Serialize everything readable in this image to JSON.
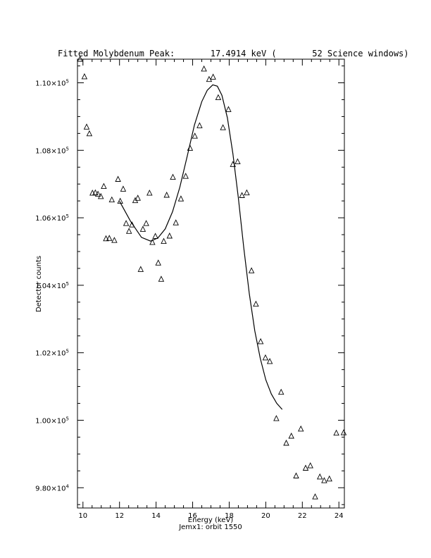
{
  "chart_data": {
    "type": "scatter",
    "title": "Fitted Molybdenum Peak:       17.4914 keV (       52 Science windows)",
    "xlabel": "Energy (keV)",
    "subtitle": "Jemx1: orbit 1550",
    "ylabel": "Detector counts",
    "xlim": [
      9.7,
      24.3
    ],
    "ylim": [
      97400,
      110700
    ],
    "grid": false,
    "x_ticks": [
      {
        "value": 10,
        "label": "10"
      },
      {
        "value": 12,
        "label": "12"
      },
      {
        "value": 14,
        "label": "14"
      },
      {
        "value": 16,
        "label": "16"
      },
      {
        "value": 18,
        "label": "18"
      },
      {
        "value": 20,
        "label": "20"
      },
      {
        "value": 22,
        "label": "22"
      },
      {
        "value": 24,
        "label": "24"
      }
    ],
    "y_ticks": [
      {
        "value": 98000,
        "mantissa": "9.80×10",
        "exp": "4"
      },
      {
        "value": 100000,
        "mantissa": "1.00×10",
        "exp": "5"
      },
      {
        "value": 102000,
        "mantissa": "1.02×10",
        "exp": "5"
      },
      {
        "value": 104000,
        "mantissa": "1.04×10",
        "exp": "5"
      },
      {
        "value": 106000,
        "mantissa": "1.06×10",
        "exp": "5"
      },
      {
        "value": 108000,
        "mantissa": "1.08×10",
        "exp": "5"
      },
      {
        "value": 110000,
        "mantissa": "1.10×10",
        "exp": "5"
      }
    ],
    "series": [
      {
        "marker": "triangle",
        "points": [
          [
            9.84,
            110700
          ],
          [
            10.08,
            110180
          ],
          [
            10.2,
            108690
          ],
          [
            10.35,
            108490
          ],
          [
            10.52,
            106730
          ],
          [
            10.68,
            106740
          ],
          [
            10.82,
            106700
          ],
          [
            10.98,
            106630
          ],
          [
            11.14,
            106930
          ],
          [
            11.26,
            105380
          ],
          [
            11.44,
            105390
          ],
          [
            11.58,
            106530
          ],
          [
            11.72,
            105330
          ],
          [
            11.92,
            107140
          ],
          [
            12.04,
            106490
          ],
          [
            12.2,
            106850
          ],
          [
            12.36,
            105830
          ],
          [
            12.52,
            105600
          ],
          [
            12.68,
            105790
          ],
          [
            12.86,
            106510
          ],
          [
            13.0,
            106580
          ],
          [
            13.16,
            104470
          ],
          [
            13.28,
            105660
          ],
          [
            13.46,
            105830
          ],
          [
            13.64,
            106730
          ],
          [
            13.8,
            105270
          ],
          [
            13.96,
            105450
          ],
          [
            14.12,
            104660
          ],
          [
            14.28,
            104180
          ],
          [
            14.42,
            105300
          ],
          [
            14.58,
            106670
          ],
          [
            14.74,
            105460
          ],
          [
            14.92,
            107200
          ],
          [
            15.08,
            105850
          ],
          [
            15.36,
            106560
          ],
          [
            15.62,
            107230
          ],
          [
            15.86,
            108060
          ],
          [
            16.12,
            108420
          ],
          [
            16.38,
            108730
          ],
          [
            16.62,
            110410
          ],
          [
            16.9,
            110100
          ],
          [
            17.12,
            110170
          ],
          [
            17.4,
            109560
          ],
          [
            17.66,
            108670
          ],
          [
            17.96,
            109210
          ],
          [
            18.2,
            107580
          ],
          [
            18.46,
            107660
          ],
          [
            18.7,
            106660
          ],
          [
            18.96,
            106740
          ],
          [
            19.22,
            104430
          ],
          [
            19.46,
            103440
          ],
          [
            19.72,
            102330
          ],
          [
            19.98,
            101850
          ],
          [
            20.22,
            101740
          ],
          [
            20.58,
            100050
          ],
          [
            20.84,
            100830
          ],
          [
            21.12,
            99320
          ],
          [
            21.4,
            99530
          ],
          [
            21.66,
            98350
          ],
          [
            21.92,
            99740
          ],
          [
            22.18,
            98580
          ],
          [
            22.44,
            98650
          ],
          [
            22.7,
            97730
          ],
          [
            22.96,
            98320
          ],
          [
            23.2,
            98210
          ],
          [
            23.48,
            98260
          ],
          [
            23.86,
            99620
          ],
          [
            24.26,
            99630
          ]
        ]
      },
      {
        "marker": "none",
        "line": "solid",
        "points": [
          [
            12.0,
            106490
          ],
          [
            12.6,
            105900
          ],
          [
            13.2,
            105420
          ],
          [
            13.7,
            105310
          ],
          [
            14.1,
            105400
          ],
          [
            14.5,
            105670
          ],
          [
            14.9,
            106180
          ],
          [
            15.3,
            106910
          ],
          [
            15.7,
            107820
          ],
          [
            16.1,
            108750
          ],
          [
            16.5,
            109440
          ],
          [
            16.8,
            109780
          ],
          [
            17.1,
            109940
          ],
          [
            17.35,
            109900
          ],
          [
            17.6,
            109630
          ],
          [
            17.9,
            108960
          ],
          [
            18.2,
            107900
          ],
          [
            18.5,
            106600
          ],
          [
            18.8,
            105100
          ],
          [
            19.1,
            103750
          ],
          [
            19.4,
            102650
          ],
          [
            19.7,
            101830
          ],
          [
            20.0,
            101200
          ],
          [
            20.3,
            100780
          ],
          [
            20.6,
            100500
          ],
          [
            20.9,
            100320
          ]
        ]
      }
    ]
  }
}
